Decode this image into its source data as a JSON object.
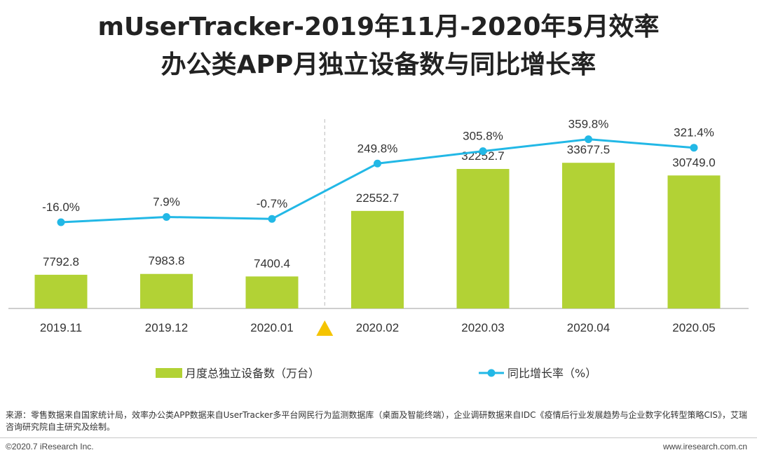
{
  "chart_data": {
    "type": "bar+line",
    "title_lines": [
      "mUserTracker-2019年11月-2020年5月效率",
      "办公类APP月独立设备数与同比增长率"
    ],
    "categories": [
      "2019.11",
      "2019.12",
      "2020.01",
      "2020.02",
      "2020.03",
      "2020.04",
      "2020.05"
    ],
    "series": [
      {
        "name": "月度总独立设备数（万台）",
        "type": "bar",
        "values": [
          7792.8,
          7983.8,
          7400.4,
          22552.7,
          32252.7,
          33677.5,
          30749.0
        ],
        "labels": [
          "7792.8",
          "7983.8",
          "7400.4",
          "22552.7",
          "32252.7",
          "33677.5",
          "30749.0"
        ],
        "color": "#b2d235"
      },
      {
        "name": "同比增长率（%）",
        "type": "line",
        "values": [
          -16.0,
          7.9,
          -0.7,
          249.8,
          305.8,
          359.8,
          321.4
        ],
        "labels": [
          "-16.0%",
          "7.9%",
          "-0.7%",
          "249.8%",
          "305.8%",
          "359.8%",
          "321.4%"
        ],
        "color": "#22b8e6"
      }
    ],
    "bar_axis_max": 47000,
    "marker_after_category": "2020.01",
    "marker_color": "#f5c400",
    "legend_position": "bottom"
  },
  "footer": {
    "source_text": "来源：零售数据来自国家统计局，效率办公类APP数据来自UserTracker多平台网民行为监测数据库（桌面及智能终端），企业调研数据来自IDC《疫情后行业发展趋势与企业数字化转型策略CIS》，艾瑞咨询研究院自主研究及绘制。",
    "copyright": "©2020.7 iResearch Inc.",
    "website": "www.iresearch.com.cn"
  }
}
